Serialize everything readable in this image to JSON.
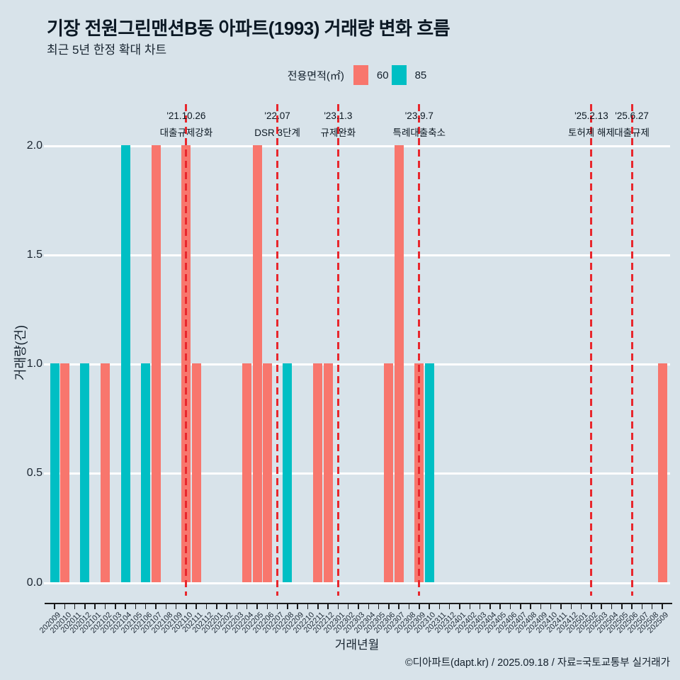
{
  "title": "기장 전원그린맨션B동 아파트(1993) 거래량 변화 흐름",
  "subtitle": "최근 5년 한정 확대 차트",
  "footer": "©디아파트(dapt.kr) / 2025.09.18 / 자료=국토교통부 실거래가",
  "legend": {
    "label": "전용면적(㎡)",
    "items": [
      {
        "label": "60",
        "color": "#F8766D"
      },
      {
        "label": "85",
        "color": "#00BFC4"
      }
    ]
  },
  "colors": {
    "background": "#D8E3EA",
    "gridline": "#FFFFFF",
    "axis": "#1A1A1A",
    "event_line": "#E8272D",
    "area_60": "#F8766D",
    "area_85": "#00BFC4"
  },
  "chart_data": {
    "type": "bar",
    "title": "기장 전원그린맨션B동 아파트(1993) 거래량 변화 흐름",
    "subtitle": "최근 5년 한정 확대 차트",
    "xlabel": "거래년월",
    "ylabel": "거래량(건)",
    "ylim": [
      0,
      2
    ],
    "yticks": [
      "0.0",
      "0.5",
      "1.0",
      "1.5",
      "2.0"
    ],
    "legend_position": "top",
    "grid": "horizontal-white",
    "categories": [
      "202009",
      "202010",
      "202011",
      "202012",
      "202101",
      "202102",
      "202103",
      "202104",
      "202105",
      "202106",
      "202107",
      "202108",
      "202109",
      "202110",
      "202111",
      "202112",
      "202201",
      "202202",
      "202203",
      "202204",
      "202205",
      "202206",
      "202207",
      "202208",
      "202209",
      "202210",
      "202211",
      "202212",
      "202301",
      "202302",
      "202303",
      "202304",
      "202305",
      "202306",
      "202307",
      "202308",
      "202309",
      "202310",
      "202311",
      "202312",
      "202401",
      "202402",
      "202403",
      "202404",
      "202405",
      "202406",
      "202407",
      "202408",
      "202409",
      "202410",
      "202411",
      "202412",
      "202501",
      "202502",
      "202503",
      "202504",
      "202505",
      "202506",
      "202507",
      "202508",
      "202509"
    ],
    "series": [
      {
        "name": "60",
        "color": "#F8766D",
        "points": [
          [
            "202010",
            1
          ],
          [
            "202102",
            1
          ],
          [
            "202107",
            2
          ],
          [
            "202110",
            2
          ],
          [
            "202111",
            1
          ],
          [
            "202204",
            1
          ],
          [
            "202205",
            2
          ],
          [
            "202206",
            1
          ],
          [
            "202211",
            1
          ],
          [
            "202212",
            1
          ],
          [
            "202306",
            1
          ],
          [
            "202307",
            2
          ],
          [
            "202309",
            1
          ],
          [
            "202509",
            1
          ]
        ]
      },
      {
        "name": "85",
        "color": "#00BFC4",
        "points": [
          [
            "202009",
            1
          ],
          [
            "202012",
            1
          ],
          [
            "202104",
            2
          ],
          [
            "202106",
            1
          ],
          [
            "202208",
            1
          ],
          [
            "202310",
            1
          ]
        ]
      }
    ],
    "annotations": [
      {
        "date": "'21.10.26",
        "label": "대출규제강화",
        "month": "202110"
      },
      {
        "date": "'22.07",
        "label": "DSR 3단계",
        "month": "202207"
      },
      {
        "date": "'23.1.3",
        "label": "규제완화",
        "month": "202301"
      },
      {
        "date": "'23.9.7",
        "label": "특례대출축소",
        "month": "202309"
      },
      {
        "date": "'25.2.13",
        "label": "토허제 해제",
        "month": "202502"
      },
      {
        "date": "'25.6.27",
        "label": "대출규제",
        "month": "202506"
      }
    ]
  }
}
